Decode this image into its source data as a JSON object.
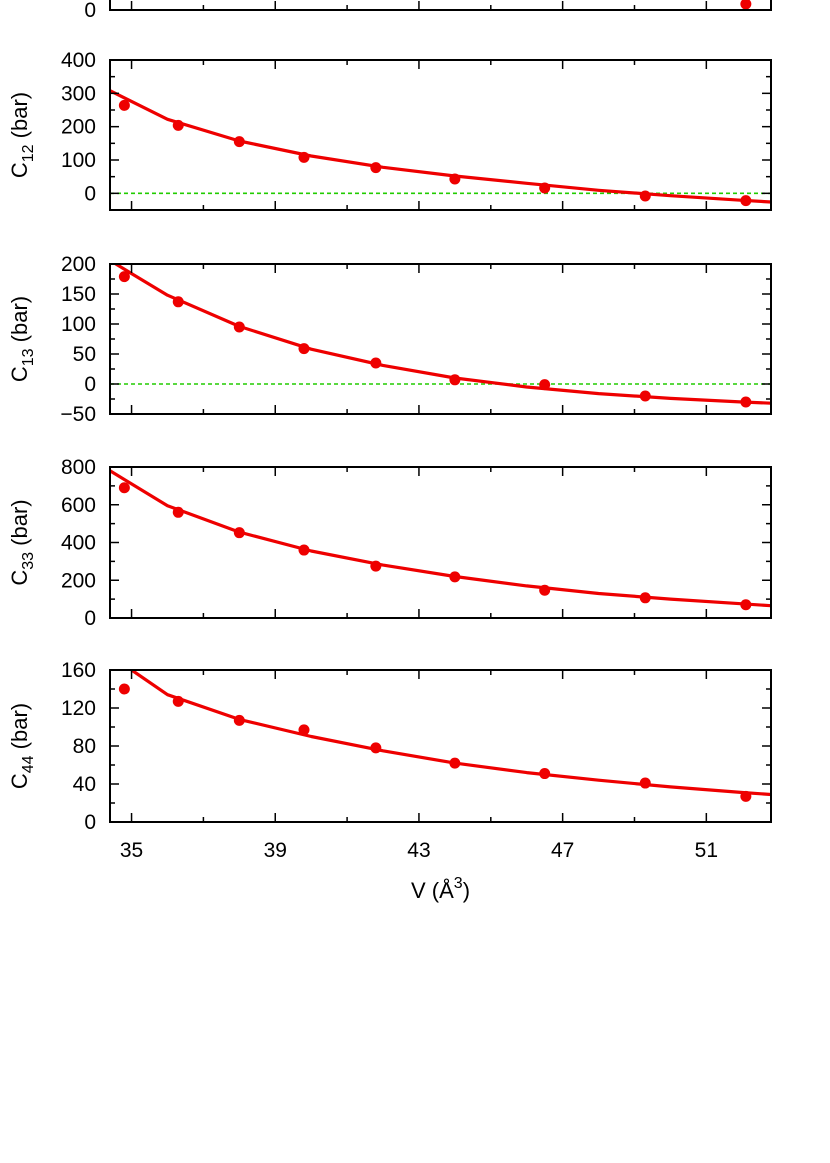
{
  "figure": {
    "xlabel": "V (Å",
    "xlabel_sup": "3",
    "xlabel_close": ")"
  },
  "chart_data": [
    {
      "type": "line",
      "panel": "C11-partial",
      "ylabel": "",
      "yticks": [
        0
      ],
      "ylim": [
        0,
        10
      ],
      "xlim": [
        34.4,
        52.8
      ],
      "xticks": [
        35,
        39,
        43,
        47,
        51
      ],
      "colors": {
        "data": "#ee0000",
        "zero_line": "#22cc00"
      },
      "series": [
        {
          "x": [
            52.1
          ],
          "y": [
            2
          ]
        }
      ]
    },
    {
      "type": "line",
      "panel": "C12",
      "ylabel": "C",
      "ylabel_sub": "12",
      "ylabel_unit": "(bar)",
      "ylim": [
        -50,
        400
      ],
      "yticks": [
        0,
        100,
        200,
        300,
        400
      ],
      "xlim": [
        34.4,
        52.8
      ],
      "xticks": [
        35,
        39,
        43,
        47,
        51
      ],
      "zero_line": true,
      "colors": {
        "data": "#ee0000",
        "zero_line": "#22cc00"
      },
      "series": [
        {
          "x": [
            34.8,
            36.3,
            38.0,
            39.8,
            41.8,
            44.0,
            46.5,
            49.3,
            52.1
          ],
          "y": [
            264,
            204,
            155,
            108,
            77,
            43,
            16,
            -8,
            -22
          ]
        }
      ],
      "fit": {
        "x": [
          34.4,
          36,
          38,
          40,
          42,
          44,
          46,
          48,
          50,
          52,
          52.8
        ],
        "y": [
          308,
          222,
          157,
          112,
          78,
          52,
          30,
          9,
          -7,
          -21,
          -26
        ]
      }
    },
    {
      "type": "line",
      "panel": "C13",
      "ylabel": "C",
      "ylabel_sub": "13",
      "ylabel_unit": "(bar)",
      "ylim": [
        -50,
        200
      ],
      "yticks": [
        -50,
        0,
        50,
        100,
        150,
        200
      ],
      "xlim": [
        34.4,
        52.8
      ],
      "xticks": [
        35,
        39,
        43,
        47,
        51
      ],
      "zero_line": true,
      "colors": {
        "data": "#ee0000",
        "zero_line": "#22cc00"
      },
      "series": [
        {
          "x": [
            34.8,
            36.3,
            38.0,
            39.8,
            41.8,
            44.0,
            46.5,
            49.3,
            52.1
          ],
          "y": [
            179,
            137,
            95,
            59,
            35,
            7,
            -1,
            -20,
            -30
          ]
        }
      ],
      "fit": {
        "x": [
          34.4,
          35,
          36,
          38,
          40,
          42,
          44,
          46,
          48,
          50,
          52,
          52.8
        ],
        "y": [
          206,
          184,
          148,
          96,
          58,
          31,
          10,
          -5,
          -16,
          -24,
          -30,
          -32
        ]
      }
    },
    {
      "type": "line",
      "panel": "C33",
      "ylabel": "C",
      "ylabel_sub": "33",
      "ylabel_unit": "(bar)",
      "ylim": [
        0,
        800
      ],
      "yticks": [
        0,
        200,
        400,
        600,
        800
      ],
      "xlim": [
        34.4,
        52.8
      ],
      "xticks": [
        35,
        39,
        43,
        47,
        51
      ],
      "zero_line": false,
      "colors": {
        "data": "#ee0000"
      },
      "series": [
        {
          "x": [
            34.8,
            36.3,
            38.0,
            39.8,
            41.8,
            44.0,
            46.5,
            49.3,
            52.1
          ],
          "y": [
            690,
            560,
            452,
            360,
            275,
            218,
            147,
            107,
            70
          ]
        }
      ],
      "fit": {
        "x": [
          34.4,
          36,
          38,
          40,
          42,
          44,
          46,
          48,
          50,
          52,
          52.8
        ],
        "y": [
          780,
          595,
          455,
          355,
          280,
          220,
          170,
          130,
          100,
          75,
          65
        ]
      }
    },
    {
      "type": "line",
      "panel": "C44",
      "ylabel": "C",
      "ylabel_sub": "44",
      "ylabel_unit": "(bar)",
      "ylim": [
        0,
        160
      ],
      "yticks": [
        0,
        40,
        80,
        120,
        160
      ],
      "xlim": [
        34.4,
        52.8
      ],
      "xticks": [
        35,
        39,
        43,
        47,
        51
      ],
      "zero_line": false,
      "colors": {
        "data": "#ee0000"
      },
      "series": [
        {
          "x": [
            34.8,
            36.3,
            38.0,
            39.8,
            41.8,
            44.0,
            46.5,
            49.3,
            52.1
          ],
          "y": [
            140,
            127,
            107,
            97,
            78,
            62,
            51,
            41,
            27
          ]
        }
      ],
      "fit": {
        "x": [
          35,
          36,
          38,
          40,
          42,
          44,
          46,
          48,
          50,
          52,
          52.8
        ],
        "y": [
          160,
          134,
          108,
          90,
          75,
          62,
          52,
          44,
          37,
          31,
          29
        ]
      }
    }
  ]
}
